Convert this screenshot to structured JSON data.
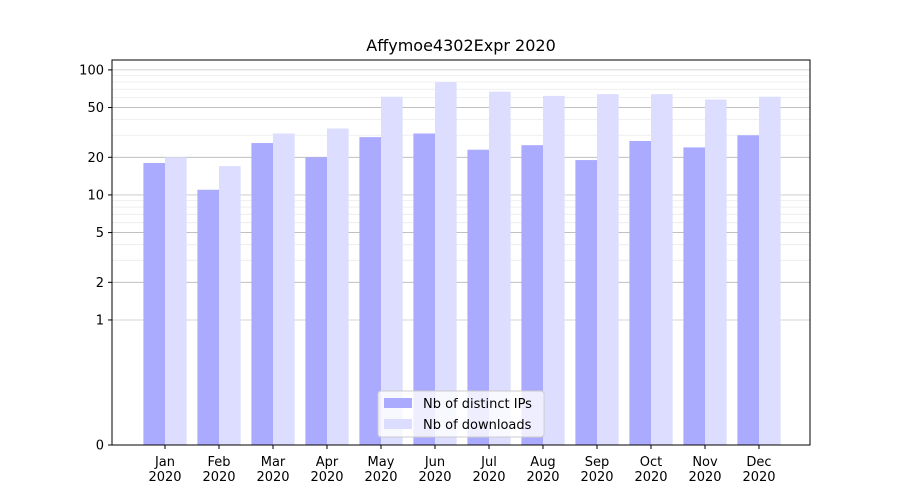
{
  "chart_data": {
    "type": "bar",
    "title": "Affymoe4302Expr 2020",
    "xlabel": "",
    "ylabel": "",
    "y_scale": "symlog",
    "ylim": [
      0,
      120
    ],
    "yticks": [
      0,
      1,
      2,
      5,
      10,
      20,
      50,
      100
    ],
    "categories": [
      "Jan\n2020",
      "Feb\n2020",
      "Mar\n2020",
      "Apr\n2020",
      "May\n2020",
      "Jun\n2020",
      "Jul\n2020",
      "Aug\n2020",
      "Sep\n2020",
      "Oct\n2020",
      "Nov\n2020",
      "Dec\n2020"
    ],
    "series": [
      {
        "name": "Nb of distinct IPs",
        "color": "#aaaaff",
        "values": [
          18,
          11,
          26,
          20,
          29,
          31,
          23,
          25,
          19,
          27,
          24,
          30
        ]
      },
      {
        "name": "Nb of downloads",
        "color": "#ddddff",
        "values": [
          20,
          17,
          31,
          34,
          61,
          80,
          67,
          62,
          64,
          64,
          58,
          61
        ]
      }
    ],
    "grid": true,
    "legend_position": "lower center"
  }
}
